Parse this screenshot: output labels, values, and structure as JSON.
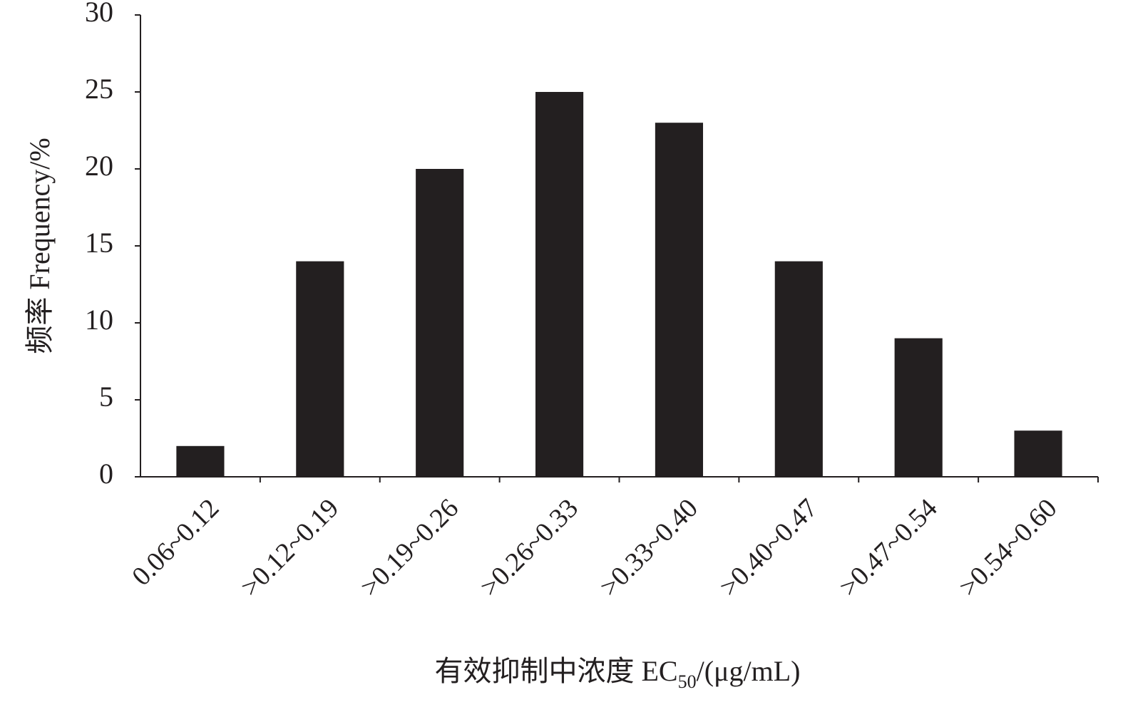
{
  "chart_data": {
    "type": "bar",
    "y_label": "频率 Frequency/%",
    "x_label": [
      "有效抑制中浓度 EC",
      "50",
      "/(μg/mL)"
    ],
    "categories": [
      "0.06~0.12",
      ">0.12~0.19",
      ">0.19~0.26",
      ">0.26~0.33",
      ">0.33~0.40",
      ">0.40~0.47",
      ">0.47~0.54",
      ">0.54~0.60"
    ],
    "values": [
      2,
      14,
      20,
      25,
      23,
      14,
      9,
      3
    ],
    "color": "#231f20",
    "ylim": [
      0,
      30
    ],
    "yticks": [
      0,
      5,
      10,
      15,
      20,
      25,
      30
    ],
    "grid": false
  }
}
